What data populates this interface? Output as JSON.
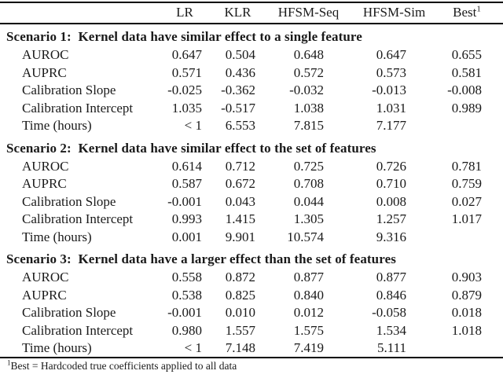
{
  "colors": {
    "text": "#1a1a1a",
    "background": "#ffffff",
    "rule": "#000000"
  },
  "table": {
    "header": [
      {
        "label": "LR",
        "marker": ""
      },
      {
        "label": "KLR",
        "marker": ""
      },
      {
        "label": "HFSM-Seq",
        "marker": ""
      },
      {
        "label": "HFSM-Sim",
        "marker": ""
      },
      {
        "label": "Best",
        "marker": "1"
      }
    ],
    "sections": [
      {
        "title": "Scenario 1:  Kernel data have similar effect to a single feature",
        "rows": [
          {
            "label": "AUROC",
            "values": [
              "0.647",
              "0.504",
              "0.648",
              "0.647",
              "0.655"
            ]
          },
          {
            "label": "AUPRC",
            "values": [
              "0.571",
              "0.436",
              "0.572",
              "0.573",
              "0.581"
            ]
          },
          {
            "label": "Calibration Slope",
            "values": [
              "-0.025",
              "-0.362",
              "-0.032",
              "-0.013",
              "-0.008"
            ]
          },
          {
            "label": "Calibration Intercept",
            "values": [
              "1.035",
              "-0.517",
              "1.038",
              "1.031",
              "0.989"
            ]
          },
          {
            "label": "Time (hours)",
            "values": [
              "< 1",
              "6.553",
              "7.815",
              "7.177",
              ""
            ]
          }
        ]
      },
      {
        "title": "Scenario 2:  Kernel data have similar effect to the set of features",
        "rows": [
          {
            "label": "AUROC",
            "values": [
              "0.614",
              "0.712",
              "0.725",
              "0.726",
              "0.781"
            ]
          },
          {
            "label": "AUPRC",
            "values": [
              "0.587",
              "0.672",
              "0.708",
              "0.710",
              "0.759"
            ]
          },
          {
            "label": "Calibration Slope",
            "values": [
              "-0.001",
              "0.043",
              "0.044",
              "0.008",
              "0.027"
            ]
          },
          {
            "label": "Calibration Intercept",
            "values": [
              "0.993",
              "1.415",
              "1.305",
              "1.257",
              "1.017"
            ]
          },
          {
            "label": "Time (hours)",
            "values": [
              "0.001",
              "9.901",
              "10.574",
              "9.316",
              ""
            ]
          }
        ]
      },
      {
        "title": "Scenario 3:  Kernel data have a larger effect than the set of features",
        "rows": [
          {
            "label": "AUROC",
            "values": [
              "0.558",
              "0.872",
              "0.877",
              "0.877",
              "0.903"
            ]
          },
          {
            "label": "AUPRC",
            "values": [
              "0.538",
              "0.825",
              "0.840",
              "0.846",
              "0.879"
            ]
          },
          {
            "label": "Calibration Slope",
            "values": [
              "-0.001",
              "0.010",
              "0.012",
              "-0.058",
              "0.018"
            ]
          },
          {
            "label": "Calibration Intercept",
            "values": [
              "0.980",
              "1.557",
              "1.575",
              "1.534",
              "1.018"
            ]
          },
          {
            "label": "Time (hours)",
            "values": [
              "< 1",
              "7.148",
              "7.419",
              "5.111",
              ""
            ]
          }
        ]
      }
    ],
    "footnote": {
      "marker": "1",
      "text": "Best = Hardcoded true coefficients applied to all data"
    }
  }
}
